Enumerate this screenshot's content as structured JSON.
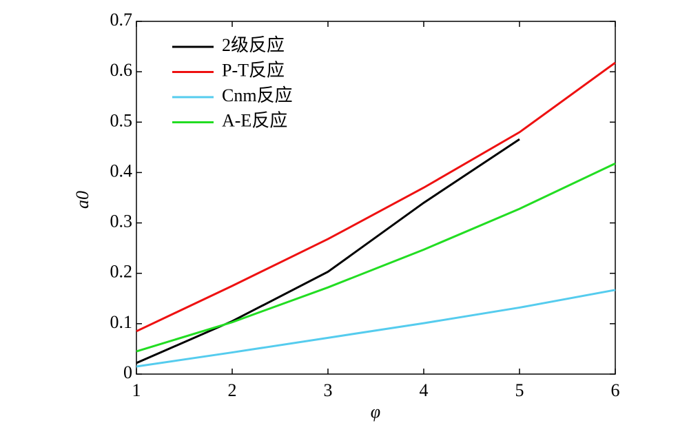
{
  "chart_data": {
    "type": "line",
    "x": [
      1,
      2,
      3,
      4,
      5,
      6
    ],
    "series": [
      {
        "name": "2级反应",
        "color": "#000000",
        "values": [
          0.022,
          0.105,
          0.203,
          0.34,
          0.466,
          null
        ]
      },
      {
        "name": "P-T反应",
        "color": "#ee1111",
        "values": [
          0.085,
          0.175,
          0.268,
          0.37,
          0.48,
          0.618
        ]
      },
      {
        "name": "Cnm反应",
        "color": "#55ccee",
        "values": [
          0.015,
          0.043,
          0.072,
          0.101,
          0.132,
          0.167
        ]
      },
      {
        "name": "A-E反应",
        "color": "#22dd22",
        "values": [
          0.045,
          0.103,
          0.172,
          0.247,
          0.328,
          0.418
        ]
      }
    ],
    "xlabel": "φ",
    "ylabel": "a0",
    "xlim": [
      1,
      6
    ],
    "xticks": [
      1,
      2,
      3,
      4,
      5,
      6
    ],
    "ylim": [
      0,
      0.7
    ],
    "yticks": [
      0,
      0.1,
      0.2,
      0.3,
      0.4,
      0.5,
      0.6,
      0.7
    ],
    "grid": false,
    "legend": "upper left"
  }
}
